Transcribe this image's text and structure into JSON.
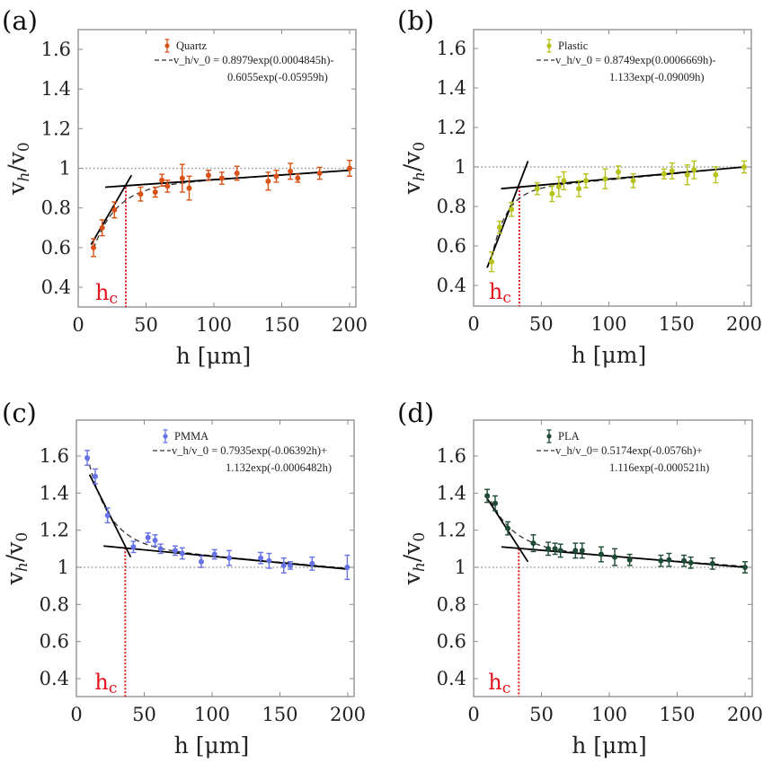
{
  "figure": {
    "panels_count": 4,
    "reference_line_value": 1.0,
    "hc_color": "#e3131b",
    "fit_line_color": "#000000",
    "reference_line_color": "#999999"
  },
  "chart_data": [
    {
      "type": "scatter",
      "panel_label": "(a)",
      "title": "",
      "xlabel": "h [μm]",
      "ylabel": "v_h/v_0",
      "xlim": [
        0,
        205
      ],
      "ylim": [
        0.3,
        1.7
      ],
      "xticks": [
        0,
        50,
        100,
        150,
        200
      ],
      "xtick_labels": [
        "0",
        "50",
        "100",
        "150",
        "200"
      ],
      "yticks": [
        0.4,
        0.6,
        0.8,
        1.0,
        1.2,
        1.4,
        1.6
      ],
      "ytick_labels": [
        "0.4",
        "0.6",
        "0.8",
        "1",
        "1.2",
        "1.4",
        "1.6"
      ],
      "grid": false,
      "legend_position": "top-right",
      "series": [
        {
          "name": "Quartz",
          "color": "#d95319",
          "x": [
            11.3,
            17.7,
            26.7,
            46,
            56.8,
            61.7,
            65.8,
            76.7,
            81.8,
            96,
            105.9,
            117,
            140,
            146,
            156.4,
            161.8,
            177.9,
            200
          ],
          "y": [
            0.6,
            0.7,
            0.79,
            0.87,
            0.88,
            0.94,
            0.91,
            0.95,
            0.9,
            0.965,
            0.95,
            0.975,
            0.935,
            0.96,
            0.985,
            0.95,
            0.975,
            1.0
          ],
          "yerr": [
            0.045,
            0.04,
            0.04,
            0.035,
            0.025,
            0.03,
            0.03,
            0.07,
            0.06,
            0.025,
            0.03,
            0.035,
            0.045,
            0.03,
            0.04,
            0.02,
            0.03,
            0.04
          ]
        }
      ],
      "fit": {
        "label": "v_h/v_0 = 0.8979exp(0.0004845h)-",
        "label_line2": "0.6055exp(-0.05959h)",
        "terms": [
          {
            "a": 0.8979,
            "b": 0.0004845
          },
          {
            "a": -0.6055,
            "b": -0.05959
          }
        ]
      },
      "piecewise_lines": [
        {
          "x": [
            9.5,
            39.3
          ],
          "y": [
            0.615,
            0.965
          ]
        },
        {
          "x": [
            19.9,
            200
          ],
          "y": [
            0.905,
            0.99
          ]
        }
      ],
      "hc": {
        "label": "h",
        "sub": "c",
        "x": 35.1,
        "y_top": 0.905
      }
    },
    {
      "type": "scatter",
      "panel_label": "(b)",
      "title": "",
      "xlabel": "h [μm]",
      "ylabel": "v_h/v_0",
      "xlim": [
        0,
        205
      ],
      "ylim": [
        0.3,
        1.7
      ],
      "xticks": [
        0,
        50,
        100,
        150,
        200
      ],
      "xtick_labels": [
        "0",
        "50",
        "100",
        "150",
        "200"
      ],
      "yticks": [
        0.4,
        0.6,
        0.8,
        1.0,
        1.2,
        1.4,
        1.6
      ],
      "ytick_labels": [
        "0.4",
        "0.6",
        "0.8",
        "1",
        "1.2",
        "1.4",
        "1.6"
      ],
      "grid": false,
      "legend_position": "top-right",
      "series": [
        {
          "name": "Plastic",
          "color": "#b8c21c",
          "x": [
            13.3,
            19.2,
            28,
            47,
            58,
            63,
            66.7,
            77.8,
            83,
            97.3,
            107,
            118,
            140.8,
            146.7,
            158,
            163,
            179,
            200
          ],
          "y": [
            0.52,
            0.695,
            0.785,
            0.89,
            0.865,
            0.9,
            0.93,
            0.89,
            0.93,
            0.94,
            0.975,
            0.93,
            0.965,
            0.98,
            0.96,
            0.985,
            0.96,
            1.0
          ],
          "yerr": [
            0.05,
            0.03,
            0.035,
            0.03,
            0.04,
            0.05,
            0.045,
            0.04,
            0.035,
            0.05,
            0.03,
            0.035,
            0.025,
            0.04,
            0.05,
            0.045,
            0.04,
            0.03
          ]
        }
      ],
      "fit": {
        "label": "v_h/v_0 = 0.8749exp(0.0006669h)-",
        "label_line2": "1.133exp(-0.09009h)",
        "terms": [
          {
            "a": 0.8749,
            "b": 0.0006669
          },
          {
            "a": -1.133,
            "b": -0.09009
          }
        ]
      },
      "piecewise_lines": [
        {
          "x": [
            10,
            40.2
          ],
          "y": [
            0.49,
            1.03
          ]
        },
        {
          "x": [
            20.3,
            200
          ],
          "y": [
            0.89,
            1.0
          ]
        }
      ],
      "hc": {
        "label": "h",
        "sub": "c",
        "x": 33.8,
        "y_top": 0.9
      }
    },
    {
      "type": "scatter",
      "panel_label": "(c)",
      "title": "",
      "xlabel": "h [μm]",
      "ylabel": "v_h/v_0",
      "xlim": [
        0,
        205
      ],
      "ylim": [
        0.3,
        1.8
      ],
      "xticks": [
        0,
        50,
        100,
        150,
        200
      ],
      "xtick_labels": [
        "0",
        "50",
        "100",
        "150",
        "200"
      ],
      "yticks": [
        0.4,
        0.6,
        0.8,
        1.0,
        1.2,
        1.4,
        1.6
      ],
      "ytick_labels": [
        "0.4",
        "0.6",
        "0.8",
        "1",
        "1.2",
        "1.4",
        "1.6"
      ],
      "grid": false,
      "legend_position": "top-right",
      "series": [
        {
          "name": "PMMA",
          "color": "#6672e6",
          "x": [
            8,
            13.9,
            23,
            42,
            52.8,
            58,
            62,
            72.8,
            78,
            92,
            101.8,
            112.6,
            135.8,
            142,
            152.8,
            157.6,
            173.7,
            199.6
          ],
          "y": [
            1.59,
            1.49,
            1.28,
            1.11,
            1.16,
            1.145,
            1.1,
            1.09,
            1.075,
            1.03,
            1.07,
            1.05,
            1.05,
            1.035,
            1.01,
            1.01,
            1.02,
            1.0
          ],
          "yerr": [
            0.04,
            0.04,
            0.04,
            0.03,
            0.025,
            0.03,
            0.025,
            0.025,
            0.03,
            0.03,
            0.025,
            0.04,
            0.03,
            0.04,
            0.04,
            0.02,
            0.035,
            0.065
          ]
        }
      ],
      "fit": {
        "label": "v_h/v_0 = 0.7935exp(-0.06392h)+",
        "label_line2": "1.132exp(-0.0006482h)",
        "terms": [
          {
            "a": 0.7935,
            "b": -0.06392
          },
          {
            "a": 1.132,
            "b": -0.0006482
          }
        ]
      },
      "piecewise_lines": [
        {
          "x": [
            9.7,
            40
          ],
          "y": [
            1.5,
            1.055
          ]
        },
        {
          "x": [
            20,
            200
          ],
          "y": [
            1.115,
            0.99
          ]
        }
      ],
      "hc": {
        "label": "h",
        "sub": "c",
        "x": 36,
        "y_top": 1.105
      }
    },
    {
      "type": "scatter",
      "panel_label": "(d)",
      "title": "",
      "xlabel": "h [μm]",
      "ylabel": "v_h/v_0",
      "xlim": [
        0,
        205
      ],
      "ylim": [
        0.3,
        1.8
      ],
      "xticks": [
        0,
        50,
        100,
        150,
        200
      ],
      "xtick_labels": [
        "0",
        "50",
        "100",
        "150",
        "200"
      ],
      "yticks": [
        0.4,
        0.6,
        0.8,
        1.0,
        1.2,
        1.4,
        1.6
      ],
      "ytick_labels": [
        "0.4",
        "0.6",
        "0.8",
        "1",
        "1.2",
        "1.4",
        "1.6"
      ],
      "grid": false,
      "legend_position": "top-right",
      "series": [
        {
          "name": "PLA",
          "color": "#1e4a36",
          "x": [
            10,
            15.9,
            25.2,
            44,
            55,
            60,
            64,
            75,
            80,
            94,
            104,
            115,
            138,
            144,
            155,
            160,
            176,
            200
          ],
          "y": [
            1.385,
            1.345,
            1.21,
            1.13,
            1.1,
            1.1,
            1.09,
            1.09,
            1.09,
            1.07,
            1.055,
            1.04,
            1.035,
            1.04,
            1.035,
            1.025,
            1.02,
            1.0
          ],
          "yerr": [
            0.035,
            0.04,
            0.035,
            0.045,
            0.035,
            0.03,
            0.035,
            0.04,
            0.04,
            0.04,
            0.045,
            0.03,
            0.03,
            0.035,
            0.03,
            0.03,
            0.03,
            0.03
          ]
        }
      ],
      "fit": {
        "label": "v_h/v_0= 0.5174exp(-0.0576h)+",
        "label_line2": "1.116exp(-0.000521h)",
        "terms": [
          {
            "a": 0.5174,
            "b": -0.0576
          },
          {
            "a": 1.116,
            "b": -0.000521
          }
        ]
      },
      "piecewise_lines": [
        {
          "x": [
            8.8,
            40
          ],
          "y": [
            1.385,
            1.03
          ]
        },
        {
          "x": [
            20.5,
            200
          ],
          "y": [
            1.11,
            1.0
          ]
        }
      ],
      "hc": {
        "label": "h",
        "sub": "c",
        "x": 33.3,
        "y_top": 1.1
      }
    }
  ]
}
